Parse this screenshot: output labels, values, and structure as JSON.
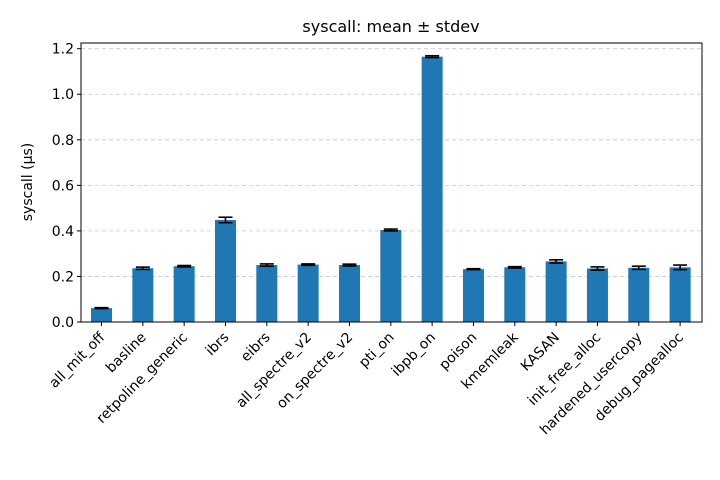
{
  "chart_data": {
    "type": "bar",
    "title": "syscall: mean ± stdev",
    "xlabel": "",
    "ylabel": "syscall (µs)",
    "ylim": [
      0,
      1.225
    ],
    "yticks": [
      0.0,
      0.2,
      0.4,
      0.6,
      0.8,
      1.0,
      1.2
    ],
    "ytick_labels": [
      "0.0",
      "0.2",
      "0.4",
      "0.6",
      "0.8",
      "1.0",
      "1.2"
    ],
    "grid": "y-dashed",
    "bar_color": "#1f77b4",
    "error_color": "#000000",
    "categories": [
      "all_mit_off",
      "basline",
      "retpoline_generic",
      "ibrs",
      "eibrs",
      "all_spectre_v2",
      "on_spectre_v2",
      "pti_on",
      "ibpb_on",
      "poison",
      "kmemleak",
      "KASAN",
      "init_free_alloc",
      "hardened_usercopy",
      "debug_pagealloc"
    ],
    "values": [
      0.061,
      0.236,
      0.245,
      0.448,
      0.25,
      0.252,
      0.25,
      0.404,
      1.165,
      0.232,
      0.24,
      0.266,
      0.235,
      0.238,
      0.24
    ],
    "errors": [
      0.002,
      0.005,
      0.003,
      0.012,
      0.005,
      0.003,
      0.004,
      0.004,
      0.004,
      0.002,
      0.003,
      0.007,
      0.007,
      0.007,
      0.01
    ]
  }
}
